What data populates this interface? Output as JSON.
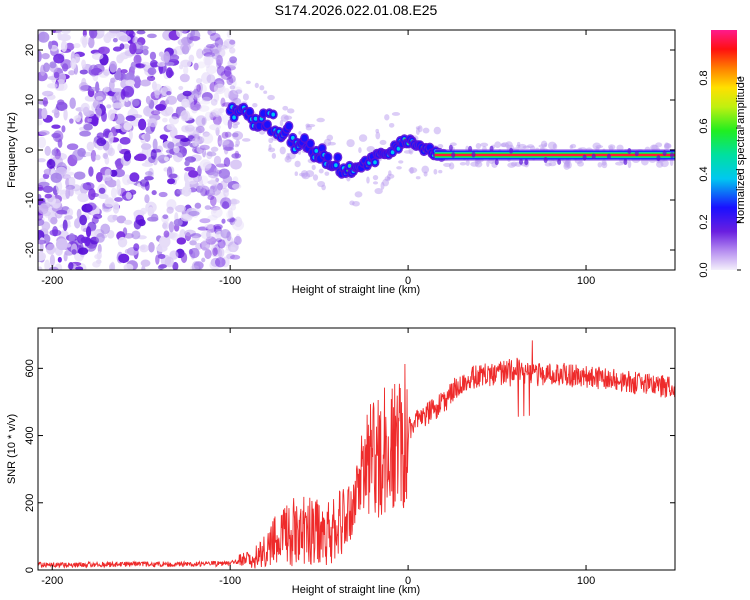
{
  "chart_data": [
    {
      "type": "heatmap",
      "title": "S174.2026.022.01.08.E25",
      "xlabel": "Height of straight line (km)",
      "ylabel": "Frequency (Hz)",
      "xlim": [
        -208,
        150
      ],
      "ylim": [
        -24,
        24
      ],
      "xticks": [
        -200,
        -100,
        0,
        100
      ],
      "xtick_labels": [
        "-200",
        "-100",
        "0",
        "100"
      ],
      "yticks": [
        20,
        10,
        0,
        -10,
        -20
      ],
      "ytick_labels": [
        "20",
        "10",
        "0",
        "-10",
        "-20"
      ],
      "colorbar": {
        "label": "Normalized spectral amplitude",
        "range": [
          0,
          1
        ],
        "ticks": [
          0.0,
          0.2,
          0.4,
          0.6,
          0.8
        ],
        "tick_labels": [
          "0.0",
          "0.2",
          "0.4",
          "0.6",
          "0.8"
        ],
        "colormap": "rainbow (violet-blue-cyan-green-yellow-orange-red-magenta)"
      },
      "ridge": {
        "description": "noise region below -95 km; bright ridge descending from ~8 Hz at -100 km to ~-5 Hz at -35 km, rising to ~2 Hz near 0 km, then flat at about -1 Hz to 150 km",
        "x": [
          -100,
          -90,
          -80,
          -70,
          -60,
          -50,
          -40,
          -35,
          -25,
          -15,
          -5,
          0,
          5,
          10,
          20,
          40,
          60,
          100,
          150
        ],
        "y": [
          8,
          7,
          6,
          4,
          1,
          0,
          -3,
          -5,
          -3,
          -1,
          1,
          2,
          1,
          0,
          -1,
          -1,
          -1,
          -1,
          -1
        ]
      }
    },
    {
      "type": "line",
      "xlabel": "Height of straight line (km)",
      "ylabel": "SNR (10 * v/v)",
      "xlim": [
        -208,
        150
      ],
      "ylim": [
        0,
        720
      ],
      "xticks": [
        -200,
        -100,
        0,
        100
      ],
      "xtick_labels": [
        "-200",
        "-100",
        "0",
        "100"
      ],
      "yticks": [
        0,
        200,
        400,
        600
      ],
      "ytick_labels": [
        "0",
        "200",
        "400",
        "600"
      ],
      "color": "#ee2a2a",
      "envelope": {
        "x": [
          -208,
          -120,
          -100,
          -90,
          -80,
          -70,
          -50,
          -40,
          -35,
          -25,
          -20,
          -10,
          0,
          10,
          20,
          30,
          40,
          50,
          60,
          70,
          80,
          100,
          120,
          150
        ],
        "y": [
          15,
          18,
          20,
          30,
          60,
          110,
          120,
          120,
          140,
          280,
          330,
          360,
          420,
          460,
          500,
          560,
          580,
          580,
          600,
          580,
          585,
          575,
          560,
          545
        ]
      }
    }
  ]
}
